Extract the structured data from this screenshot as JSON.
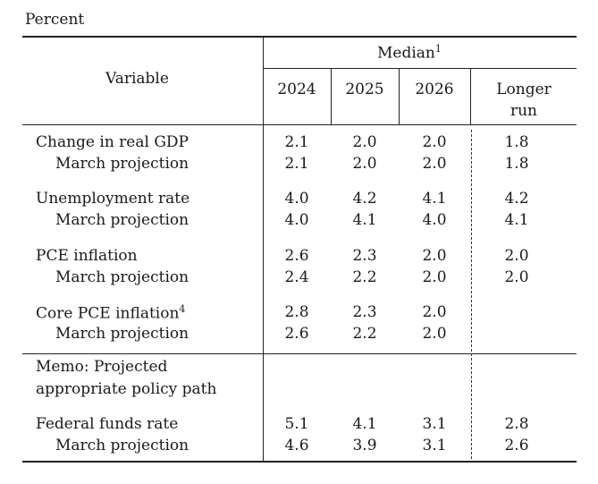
{
  "page_label": "Percent",
  "header": {
    "variable": "Variable",
    "median": "Median",
    "median_note": "1",
    "years": [
      "2024",
      "2025",
      "2026"
    ],
    "longer_run_line1": "Longer",
    "longer_run_line2": "run"
  },
  "rows": [
    {
      "label": "Change in real GDP",
      "values": [
        "2.1",
        "2.0",
        "2.0",
        "1.8"
      ]
    },
    {
      "label": "March projection",
      "values": [
        "2.1",
        "2.0",
        "2.0",
        "1.8"
      ]
    },
    {
      "label": "Unemployment rate",
      "values": [
        "4.0",
        "4.2",
        "4.1",
        "4.2"
      ]
    },
    {
      "label": "March projection",
      "values": [
        "4.0",
        "4.1",
        "4.0",
        "4.1"
      ]
    },
    {
      "label": "PCE inflation",
      "values": [
        "2.6",
        "2.3",
        "2.0",
        "2.0"
      ]
    },
    {
      "label": "March projection",
      "values": [
        "2.4",
        "2.2",
        "2.0",
        "2.0"
      ]
    },
    {
      "label": "Core PCE inflation",
      "note": "4",
      "values": [
        "2.8",
        "2.3",
        "2.0",
        ""
      ]
    },
    {
      "label": "March projection",
      "values": [
        "2.6",
        "2.2",
        "2.0",
        ""
      ]
    }
  ],
  "memo": {
    "line1": "Memo: Projected",
    "line2": "appropriate policy path"
  },
  "memo_rows": [
    {
      "label": "Federal funds rate",
      "values": [
        "5.1",
        "4.1",
        "3.1",
        "2.8"
      ]
    },
    {
      "label": "March projection",
      "values": [
        "4.6",
        "3.9",
        "3.1",
        "2.6"
      ]
    }
  ]
}
